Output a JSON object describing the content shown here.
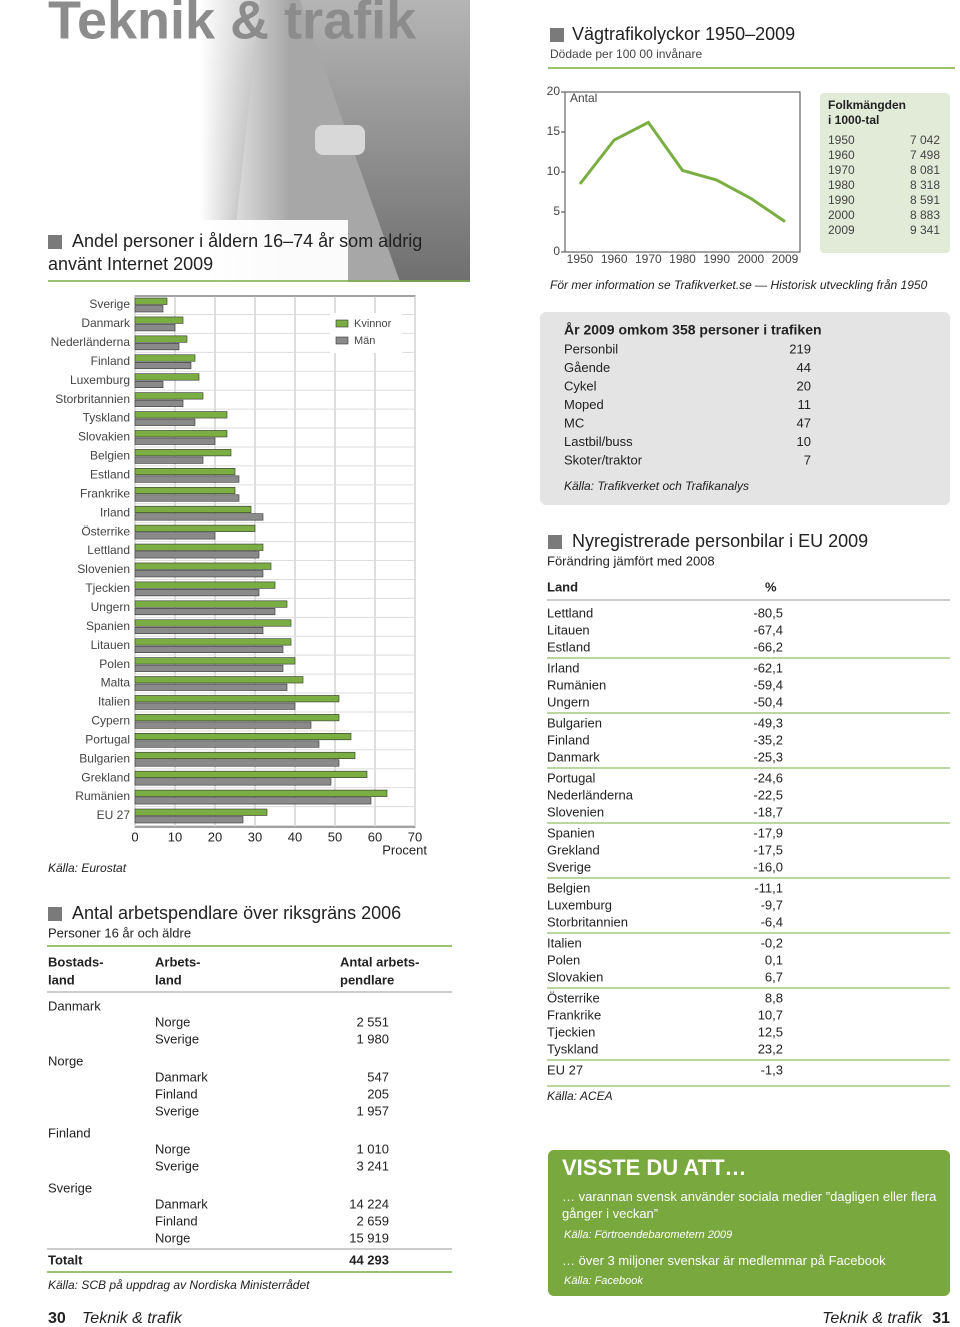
{
  "header": {
    "title": "Teknik & trafik"
  },
  "chart_data": [
    {
      "type": "bar",
      "orientation": "horizontal",
      "title": "Andel personer i åldern 16–74 år som aldrig använt Internet 2009",
      "categories": [
        "Sverige",
        "Danmark",
        "Nederländerna",
        "Finland",
        "Luxemburg",
        "Storbritannien",
        "Tyskland",
        "Slovakien",
        "Belgien",
        "Estland",
        "Frankrike",
        "Irland",
        "Österrike",
        "Lettland",
        "Slovenien",
        "Tjeckien",
        "Ungern",
        "Spanien",
        "Litauen",
        "Polen",
        "Malta",
        "Italien",
        "Cypern",
        "Portugal",
        "Bulgarien",
        "Grekland",
        "Rumänien",
        "EU 27"
      ],
      "series": [
        {
          "name": "Kvinnor",
          "color": "#7aad42",
          "values": [
            8,
            12,
            13,
            15,
            16,
            17,
            23,
            23,
            24,
            25,
            25,
            29,
            30,
            32,
            34,
            35,
            38,
            39,
            39,
            40,
            42,
            51,
            51,
            54,
            55,
            58,
            63,
            33
          ]
        },
        {
          "name": "Män",
          "color": "#8a8a8a",
          "values": [
            7,
            10,
            11,
            14,
            7,
            12,
            15,
            20,
            17,
            26,
            26,
            32,
            20,
            31,
            32,
            31,
            35,
            32,
            37,
            37,
            38,
            40,
            44,
            46,
            51,
            49,
            59,
            27
          ]
        }
      ],
      "xlim": [
        0,
        70
      ],
      "xticks": [
        0,
        10,
        20,
        30,
        40,
        50,
        60,
        70
      ],
      "xlabel": "Procent",
      "grid": true,
      "legend": "top-right",
      "source": "Källa: Eurostat"
    },
    {
      "type": "line",
      "title": "Vägtrafikolyckor 1950–2009",
      "subtitle": "Dödade per 100 00 invånare",
      "categories": [
        "1950",
        "1960",
        "1970",
        "1980",
        "1990",
        "2000",
        "2009"
      ],
      "series": [
        {
          "name": "Antal",
          "color": "#7aad42",
          "values": [
            8.5,
            14,
            16.2,
            10.2,
            9,
            6.7,
            3.8
          ]
        }
      ],
      "ylim": [
        0,
        20
      ],
      "yticks": [
        0,
        5,
        10,
        15,
        20
      ],
      "note": "För mer information se Trafikverket.se — Historisk utveckling från 1950"
    }
  ],
  "population": {
    "title": [
      "Folkmängden",
      "i 1000-tal"
    ],
    "rows": [
      [
        "1950",
        "7 042"
      ],
      [
        "1960",
        "7 498"
      ],
      [
        "1970",
        "8 081"
      ],
      [
        "1980",
        "8 318"
      ],
      [
        "1990",
        "8 591"
      ],
      [
        "2000",
        "8 883"
      ],
      [
        "2009",
        "9 341"
      ]
    ]
  },
  "persons": {
    "title": "År 2009 omkom 358 personer i trafiken",
    "rows": [
      [
        "Personbil",
        "219"
      ],
      [
        "Gående",
        "44"
      ],
      [
        "Cykel",
        "20"
      ],
      [
        "Moped",
        "11"
      ],
      [
        "MC",
        "47"
      ],
      [
        "Lastbil/buss",
        "10"
      ],
      [
        "Skoter/traktor",
        "7"
      ]
    ],
    "source": "Källa: Trafikverket och Trafikanalys"
  },
  "commuters": {
    "title": "Antal arbetspendlare över riksgräns 2006",
    "subtitle": "Personer 16 år och äldre",
    "headers": [
      [
        "Bostads-",
        "land"
      ],
      [
        "Arbets-",
        "land"
      ],
      [
        "Antal arbets-",
        "pendlare"
      ]
    ],
    "groups": [
      {
        "country": "Danmark",
        "rows": [
          [
            "Norge",
            "2 551"
          ],
          [
            "Sverige",
            "1 980"
          ]
        ]
      },
      {
        "country": "Norge",
        "rows": [
          [
            "Danmark",
            "547"
          ],
          [
            "Finland",
            "205"
          ],
          [
            "Sverige",
            "1 957"
          ]
        ]
      },
      {
        "country": "Finland",
        "rows": [
          [
            "Norge",
            "1 010"
          ],
          [
            "Sverige",
            "3 241"
          ]
        ]
      },
      {
        "country": "Sverige",
        "rows": [
          [
            "Danmark",
            "14 224"
          ],
          [
            "Finland",
            "2 659"
          ],
          [
            "Norge",
            "15 919"
          ]
        ]
      }
    ],
    "total": [
      "Totalt",
      "44 293"
    ],
    "source": "Källa: SCB på uppdrag av Nordiska Ministerrådet"
  },
  "registrations": {
    "title": "Nyregistrerade personbilar i EU 2009",
    "subtitle": "Förändring jämfört med 2008",
    "headers": [
      "Land",
      "%"
    ],
    "groups": [
      [
        [
          "Lettland",
          "-80,5"
        ],
        [
          "Litauen",
          "-67,4"
        ],
        [
          "Estland",
          "-66,2"
        ]
      ],
      [
        [
          "Irland",
          "-62,1"
        ],
        [
          "Rumänien",
          "-59,4"
        ],
        [
          "Ungern",
          "-50,4"
        ]
      ],
      [
        [
          "Bulgarien",
          "-49,3"
        ],
        [
          "Finland",
          "-35,2"
        ],
        [
          "Danmark",
          "-25,3"
        ]
      ],
      [
        [
          "Portugal",
          "-24,6"
        ],
        [
          "Nederländerna",
          "-22,5"
        ],
        [
          "Slovenien",
          "-18,7"
        ]
      ],
      [
        [
          "Spanien",
          "-17,9"
        ],
        [
          "Grekland",
          "-17,5"
        ],
        [
          "Sverige",
          "-16,0"
        ]
      ],
      [
        [
          "Belgien",
          "-11,1"
        ],
        [
          "Luxemburg",
          "-9,7"
        ],
        [
          "Storbritannien",
          "-6,4"
        ]
      ],
      [
        [
          "Italien",
          "-0,2"
        ],
        [
          "Polen",
          "0,1"
        ],
        [
          "Slovakien",
          "6,7"
        ]
      ],
      [
        [
          "Österrike",
          "8,8"
        ],
        [
          "Frankrike",
          "10,7"
        ],
        [
          "Tjeckien",
          "12,5"
        ],
        [
          "Tyskland",
          "23,2"
        ]
      ],
      [
        [
          "EU 27",
          "-1,3"
        ]
      ]
    ],
    "source": "Källa: ACEA"
  },
  "visste": {
    "title": "VISSTE DU ATT…",
    "items": [
      {
        "text": "… varannan svensk använder sociala medier ”dagligen eller flera gånger i veckan”",
        "source": "Källa: Förtroendebarometern 2009"
      },
      {
        "text": "… över 3 miljoner svenskar är medlemmar på Facebook",
        "source": "Källa: Facebook"
      }
    ]
  },
  "footer": {
    "left_page": "30",
    "left_title": "Teknik & trafik",
    "right_title": "Teknik & trafik",
    "right_page": "31"
  }
}
